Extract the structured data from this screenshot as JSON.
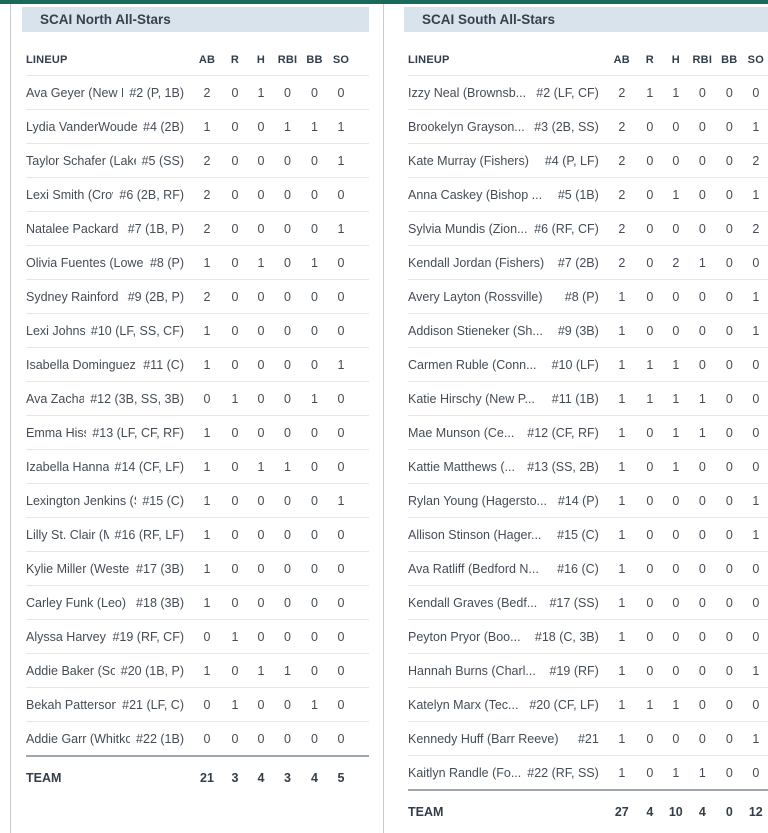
{
  "columns": [
    "AB",
    "R",
    "H",
    "RBI",
    "BB",
    "SO"
  ],
  "lineup_label": "LINEUP",
  "team_label": "TEAM",
  "colors": {
    "accent_teal": "#1a6a5a",
    "title_bar_bg": "#d9e3ec",
    "title_text": "#36414e",
    "body_text": "#454c55",
    "row_border": "#e4e6e8",
    "totals_border": "#a0a6ad",
    "panel_divider": "#c7cbcf"
  },
  "tables": [
    {
      "title": "SCAI North All-Stars",
      "players": [
        {
          "name": "Ava Geyer (New Pra...",
          "tag": "#2 (P, 1B)",
          "stats": [
            2,
            0,
            1,
            0,
            0,
            0
          ]
        },
        {
          "name": "Lydia VanderWoude (Il...",
          "tag": "#4 (2B)",
          "stats": [
            1,
            0,
            0,
            1,
            1,
            1
          ]
        },
        {
          "name": "Taylor Schafer (Lake C...",
          "tag": "#5 (SS)",
          "stats": [
            2,
            0,
            0,
            0,
            0,
            1
          ]
        },
        {
          "name": "Lexi Smith (Crown ...",
          "tag": "#6 (2B, RF)",
          "stats": [
            2,
            0,
            0,
            0,
            0,
            0
          ]
        },
        {
          "name": "Natalee Packard (Lo...",
          "tag": "#7 (1B, P)",
          "stats": [
            2,
            0,
            0,
            0,
            0,
            1
          ]
        },
        {
          "name": "Olivia Fuentes (Lowell)",
          "tag": "#8 (P)",
          "stats": [
            1,
            0,
            1,
            0,
            1,
            0
          ]
        },
        {
          "name": "Sydney Rainford (N...",
          "tag": "#9 (2B, P)",
          "stats": [
            2,
            0,
            0,
            0,
            0,
            0
          ]
        },
        {
          "name": "Lexi Johnson (...",
          "tag": "#10 (LF, SS, CF)",
          "stats": [
            1,
            0,
            0,
            0,
            0,
            0
          ]
        },
        {
          "name": "Isabella Dominguez (T...",
          "tag": "#11 (C)",
          "stats": [
            1,
            0,
            0,
            0,
            0,
            1
          ]
        },
        {
          "name": "Ava Zachary (...",
          "tag": "#12 (3B, SS, 3B)",
          "stats": [
            0,
            1,
            0,
            0,
            1,
            0
          ]
        },
        {
          "name": "Emma Hiss (C...",
          "tag": "#13 (LF, CF, RF)",
          "stats": [
            1,
            0,
            0,
            0,
            0,
            0
          ]
        },
        {
          "name": "Izabella Hanna (P...",
          "tag": "#14 (CF, LF)",
          "stats": [
            1,
            0,
            1,
            1,
            0,
            0
          ]
        },
        {
          "name": "Lexington Jenkins (Sou...",
          "tag": "#15 (C)",
          "stats": [
            1,
            0,
            0,
            0,
            0,
            1
          ]
        },
        {
          "name": "Lilly St. Clair (Mish...",
          "tag": "#16 (RF, LF)",
          "stats": [
            1,
            0,
            0,
            0,
            0,
            0
          ]
        },
        {
          "name": "Kylie Miller (Western)",
          "tag": "#17 (3B)",
          "stats": [
            1,
            0,
            0,
            0,
            0,
            0
          ]
        },
        {
          "name": "Carley Funk (Leo)",
          "tag": "#18 (3B)",
          "stats": [
            1,
            0,
            0,
            0,
            0,
            0
          ]
        },
        {
          "name": "Alyssa Harvey (W...",
          "tag": "#19 (RF, CF)",
          "stats": [
            0,
            1,
            0,
            0,
            0,
            0
          ]
        },
        {
          "name": "Addie Baker (Sout...",
          "tag": "#20 (1B, P)",
          "stats": [
            1,
            0,
            1,
            1,
            0,
            0
          ]
        },
        {
          "name": "Bekah Patterson (S...",
          "tag": "#21 (LF, C)",
          "stats": [
            0,
            1,
            0,
            0,
            1,
            0
          ]
        },
        {
          "name": "Addie Garr (Whitko)",
          "tag": "#22 (1B)",
          "stats": [
            0,
            0,
            0,
            0,
            0,
            0
          ]
        }
      ],
      "totals": [
        21,
        3,
        4,
        3,
        4,
        5
      ]
    },
    {
      "title": "SCAI South All-Stars",
      "players": [
        {
          "name": "Izzy Neal (Brownsb...",
          "tag": "#2 (LF, CF)",
          "stats": [
            2,
            1,
            1,
            0,
            0,
            0
          ]
        },
        {
          "name": "Brookelyn Grayson...",
          "tag": "#3 (2B, SS)",
          "stats": [
            2,
            0,
            0,
            0,
            0,
            1
          ]
        },
        {
          "name": "Kate Murray (Fishers)",
          "tag": "#4 (P, LF)",
          "stats": [
            2,
            0,
            0,
            0,
            0,
            2
          ]
        },
        {
          "name": "Anna Caskey (Bishop ...",
          "tag": "#5 (1B)",
          "stats": [
            2,
            0,
            1,
            0,
            0,
            1
          ]
        },
        {
          "name": "Sylvia Mundis (Zion...",
          "tag": "#6 (RF, CF)",
          "stats": [
            2,
            0,
            0,
            0,
            0,
            2
          ]
        },
        {
          "name": "Kendall Jordan (Fishers)",
          "tag": "#7 (2B)",
          "stats": [
            2,
            0,
            2,
            1,
            0,
            0
          ]
        },
        {
          "name": "Avery Layton (Rossville)",
          "tag": "#8 (P)",
          "stats": [
            1,
            0,
            0,
            0,
            0,
            1
          ]
        },
        {
          "name": "Addison Stieneker (Sh...",
          "tag": "#9 (3B)",
          "stats": [
            1,
            0,
            0,
            0,
            0,
            1
          ]
        },
        {
          "name": "Carmen Ruble (Conn...",
          "tag": "#10 (LF)",
          "stats": [
            1,
            1,
            1,
            0,
            0,
            0
          ]
        },
        {
          "name": "Katie Hirschy (New P...",
          "tag": "#11 (1B)",
          "stats": [
            1,
            1,
            1,
            1,
            0,
            0
          ]
        },
        {
          "name": "Mae Munson (Ce...",
          "tag": "#12 (CF, RF)",
          "stats": [
            1,
            0,
            1,
            1,
            0,
            0
          ]
        },
        {
          "name": "Kattie Matthews (...",
          "tag": "#13 (SS, 2B)",
          "stats": [
            1,
            0,
            1,
            0,
            0,
            0
          ]
        },
        {
          "name": "Rylan Young (Hagersto...",
          "tag": "#14 (P)",
          "stats": [
            1,
            0,
            0,
            0,
            0,
            1
          ]
        },
        {
          "name": "Allison Stinson (Hager...",
          "tag": "#15 (C)",
          "stats": [
            1,
            0,
            0,
            0,
            0,
            1
          ]
        },
        {
          "name": "Ava Ratliff (Bedford N...",
          "tag": "#16 (C)",
          "stats": [
            1,
            0,
            0,
            0,
            0,
            0
          ]
        },
        {
          "name": "Kendall Graves (Bedf...",
          "tag": "#17 (SS)",
          "stats": [
            1,
            0,
            0,
            0,
            0,
            0
          ]
        },
        {
          "name": "Peyton Pryor (Boo...",
          "tag": "#18 (C, 3B)",
          "stats": [
            1,
            0,
            0,
            0,
            0,
            0
          ]
        },
        {
          "name": "Hannah Burns (Charl...",
          "tag": "#19 (RF)",
          "stats": [
            1,
            0,
            0,
            0,
            0,
            1
          ]
        },
        {
          "name": "Katelyn Marx (Tec...",
          "tag": "#20 (CF, LF)",
          "stats": [
            1,
            1,
            1,
            0,
            0,
            0
          ]
        },
        {
          "name": "Kennedy Huff (Barr Reeve)",
          "tag": "#21",
          "stats": [
            1,
            0,
            0,
            0,
            0,
            1
          ]
        },
        {
          "name": "Kaitlyn Randle (Fo...",
          "tag": "#22 (RF, SS)",
          "stats": [
            1,
            0,
            1,
            1,
            0,
            0
          ]
        }
      ],
      "totals": [
        27,
        4,
        10,
        4,
        0,
        12
      ]
    }
  ]
}
